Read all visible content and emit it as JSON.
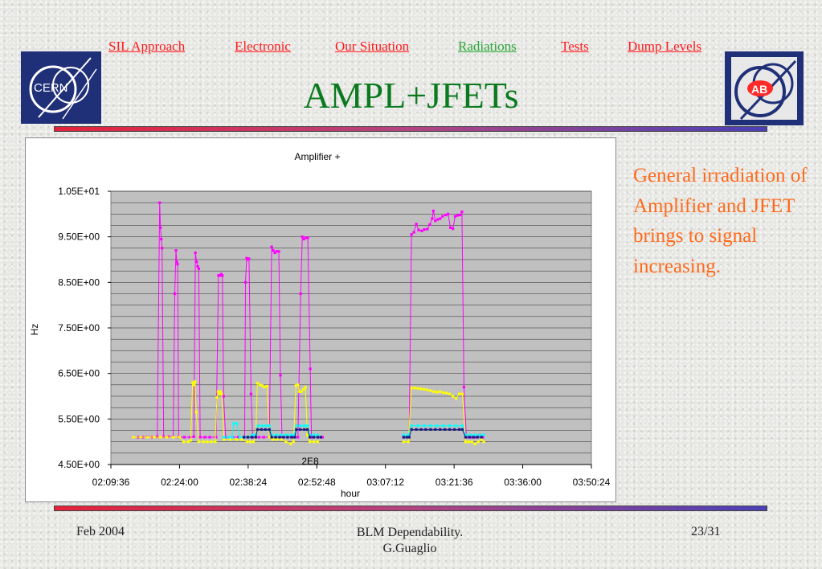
{
  "nav": {
    "items": [
      {
        "label": "SIL Approach",
        "color": "#ff1a1a"
      },
      {
        "label": "Electronic",
        "color": "#ff1a1a"
      },
      {
        "label": "Our Situation",
        "color": "#ff1a1a"
      },
      {
        "label": "Radiations",
        "color": "#2aa637"
      },
      {
        "label": "Tests",
        "color": "#ff1a1a"
      },
      {
        "label": "Dump Levels",
        "color": "#ff1a1a"
      }
    ]
  },
  "logos": {
    "left": {
      "text": "CERN",
      "name": "cern-logo"
    },
    "right": {
      "text": "AB",
      "name": "ab-logo"
    }
  },
  "slide": {
    "title": "AMPL+JFETs",
    "side_text": "General irradiation of Amplifier and JFET brings to signal increasing."
  },
  "footer": {
    "left": "Feb 2004",
    "center_line1": "BLM Dependability.",
    "center_line2": "G.Guaglio",
    "right": "23/31"
  },
  "chart_data": {
    "type": "line",
    "title": "Amplifier +",
    "xlabel": "hour",
    "ylabel": "Hz",
    "annotation": "2E8",
    "x_unit": "time of day (seconds since 00:00)",
    "xlim": [
      7776,
      13824
    ],
    "ylim": [
      45000000,
      105000000
    ],
    "x_ticks": [
      "02:09:36",
      "02:24:00",
      "02:38:24",
      "02:52:48",
      "03:07:12",
      "03:21:36",
      "03:36:00",
      "03:50:24"
    ],
    "y_ticks": [
      "4.50E+00",
      "5.50E+00",
      "6.50E+00",
      "7.50E+00",
      "8.50E+00",
      "9.50E+00",
      "1.05E+01"
    ],
    "grid": true,
    "plot_background": "#c0c0c0",
    "legend": "none",
    "series": [
      {
        "color": "#ff00ff",
        "points": [
          [
            8060,
            51000000
          ],
          [
            8120,
            51000000
          ],
          [
            8180,
            51000000
          ],
          [
            8240,
            51100000
          ],
          [
            8300,
            51000000
          ],
          [
            8360,
            51100000
          ],
          [
            8390,
            102500000
          ],
          [
            8400,
            97000000
          ],
          [
            8410,
            94500000
          ],
          [
            8420,
            92500000
          ],
          [
            8440,
            51100000
          ],
          [
            8500,
            51100000
          ],
          [
            8560,
            51100000
          ],
          [
            8580,
            82500000
          ],
          [
            8595,
            92000000
          ],
          [
            8605,
            89500000
          ],
          [
            8615,
            89000000
          ],
          [
            8630,
            51000000
          ],
          [
            8700,
            51000000
          ],
          [
            8770,
            51000000
          ],
          [
            8820,
            51100000
          ],
          [
            8840,
            91500000
          ],
          [
            8855,
            89500000
          ],
          [
            8868,
            88500000
          ],
          [
            8882,
            88000000
          ],
          [
            8900,
            51000000
          ],
          [
            8960,
            51000000
          ],
          [
            9020,
            51000000
          ],
          [
            9100,
            51000000
          ],
          [
            9130,
            86500000
          ],
          [
            9150,
            86500000
          ],
          [
            9165,
            86800000
          ],
          [
            9180,
            86500000
          ],
          [
            9195,
            60000000
          ],
          [
            9220,
            51000000
          ],
          [
            9300,
            51000000
          ],
          [
            9380,
            51000000
          ],
          [
            9460,
            51000000
          ],
          [
            9470,
            85000000
          ],
          [
            9485,
            90300000
          ],
          [
            9500,
            90000000
          ],
          [
            9515,
            90200000
          ],
          [
            9540,
            60500000
          ],
          [
            9560,
            51000000
          ],
          [
            9640,
            51000000
          ],
          [
            9700,
            51000000
          ],
          [
            9770,
            51000000
          ],
          [
            9800,
            92800000
          ],
          [
            9820,
            92000000
          ],
          [
            9840,
            91500000
          ],
          [
            9860,
            91800000
          ],
          [
            9890,
            91800000
          ],
          [
            9910,
            64600000
          ],
          [
            9930,
            51000000
          ],
          [
            10000,
            51000000
          ],
          [
            10070,
            51000000
          ],
          [
            10130,
            51000000
          ],
          [
            10165,
            82500000
          ],
          [
            10185,
            95000000
          ],
          [
            10205,
            94500000
          ],
          [
            10230,
            94800000
          ],
          [
            10255,
            94800000
          ],
          [
            10285,
            66000000
          ],
          [
            10300,
            51000000
          ],
          [
            10380,
            51000000
          ],
          [
            10440,
            51000000
          ],
          [
            11460,
            51000000
          ],
          [
            11530,
            51000000
          ],
          [
            11560,
            95500000
          ],
          [
            11590,
            96000000
          ],
          [
            11620,
            97800000
          ],
          [
            11650,
            96500000
          ],
          [
            11690,
            96300000
          ],
          [
            11720,
            96600000
          ],
          [
            11760,
            96700000
          ],
          [
            11790,
            97700000
          ],
          [
            11820,
            99000000
          ],
          [
            11835,
            100700000
          ],
          [
            11860,
            98500000
          ],
          [
            11890,
            98800000
          ],
          [
            11920,
            99000000
          ],
          [
            11950,
            99500000
          ],
          [
            11990,
            99800000
          ],
          [
            12020,
            100000000
          ],
          [
            12050,
            97000000
          ],
          [
            12080,
            96800000
          ],
          [
            12110,
            99500000
          ],
          [
            12140,
            99700000
          ],
          [
            12170,
            99800000
          ],
          [
            12195,
            100500000
          ],
          [
            12220,
            62000000
          ],
          [
            12250,
            51000000
          ],
          [
            12290,
            51000000
          ],
          [
            12320,
            51000000
          ],
          [
            12360,
            51000000
          ],
          [
            12420,
            51500000
          ],
          [
            12460,
            51000000
          ]
        ]
      },
      {
        "color": "#ffff00",
        "points": [
          [
            8060,
            51000000
          ],
          [
            8150,
            51000000
          ],
          [
            8240,
            51000000
          ],
          [
            8320,
            51000000
          ],
          [
            8400,
            51000000
          ],
          [
            8480,
            51000000
          ],
          [
            8560,
            51000000
          ],
          [
            8640,
            51000000
          ],
          [
            8690,
            50000000
          ],
          [
            8750,
            50000000
          ],
          [
            8780,
            50300000
          ],
          [
            8805,
            63000000
          ],
          [
            8820,
            62500000
          ],
          [
            8835,
            63200000
          ],
          [
            8850,
            56500000
          ],
          [
            8880,
            50000000
          ],
          [
            8940,
            50000000
          ],
          [
            8990,
            50000000
          ],
          [
            9040,
            50000000
          ],
          [
            9090,
            50000000
          ],
          [
            9110,
            59700000
          ],
          [
            9125,
            61000000
          ],
          [
            9140,
            60500000
          ],
          [
            9155,
            61000000
          ],
          [
            9170,
            60500000
          ],
          [
            9200,
            50500000
          ],
          [
            9280,
            50500000
          ],
          [
            9360,
            50500000
          ],
          [
            9420,
            50500000
          ],
          [
            9490,
            50000000
          ],
          [
            9530,
            50000000
          ],
          [
            9570,
            50000000
          ],
          [
            9600,
            51000000
          ],
          [
            9620,
            62900000
          ],
          [
            9650,
            62500000
          ],
          [
            9680,
            62300000
          ],
          [
            9710,
            62000000
          ],
          [
            9740,
            62200000
          ],
          [
            9770,
            51000000
          ],
          [
            9810,
            50500000
          ],
          [
            9860,
            50500000
          ],
          [
            9920,
            50500000
          ],
          [
            9980,
            50000000
          ],
          [
            10040,
            49500000
          ],
          [
            10075,
            50000000
          ],
          [
            10105,
            62300000
          ],
          [
            10130,
            62500000
          ],
          [
            10150,
            61000000
          ],
          [
            10175,
            61000000
          ],
          [
            10200,
            61500000
          ],
          [
            10225,
            62000000
          ],
          [
            10250,
            51500000
          ],
          [
            10280,
            50000000
          ],
          [
            10330,
            50000000
          ],
          [
            10380,
            50000000
          ],
          [
            11460,
            50000000
          ],
          [
            11520,
            50000000
          ],
          [
            11560,
            61800000
          ],
          [
            11600,
            61800000
          ],
          [
            11640,
            61700000
          ],
          [
            11680,
            61600000
          ],
          [
            11720,
            61500000
          ],
          [
            11760,
            61400000
          ],
          [
            11800,
            61200000
          ],
          [
            11840,
            61000000
          ],
          [
            11880,
            60900000
          ],
          [
            11920,
            61000000
          ],
          [
            11960,
            60800000
          ],
          [
            12000,
            60700000
          ],
          [
            12040,
            60500000
          ],
          [
            12080,
            60000000
          ],
          [
            12120,
            59500000
          ],
          [
            12160,
            60500000
          ],
          [
            12200,
            60500000
          ],
          [
            12240,
            50000000
          ],
          [
            12280,
            50000000
          ],
          [
            12320,
            50000000
          ],
          [
            12360,
            49500000
          ],
          [
            12400,
            50000000
          ],
          [
            12440,
            50500000
          ],
          [
            12470,
            50000000
          ]
        ]
      },
      {
        "color": "#00ffff",
        "points": [
          [
            9200,
            51000000
          ],
          [
            9260,
            51000000
          ],
          [
            9300,
            51000000
          ],
          [
            9320,
            54000000
          ],
          [
            9360,
            54000000
          ],
          [
            9400,
            51000000
          ],
          [
            9460,
            51000000
          ],
          [
            9500,
            51000000
          ],
          [
            9560,
            51500000
          ],
          [
            9600,
            51500000
          ],
          [
            9630,
            53500000
          ],
          [
            9680,
            53500000
          ],
          [
            9730,
            53500000
          ],
          [
            9770,
            53500000
          ],
          [
            9800,
            51500000
          ],
          [
            9860,
            51500000
          ],
          [
            9920,
            51500000
          ],
          [
            9980,
            51500000
          ],
          [
            10040,
            51500000
          ],
          [
            10080,
            51500000
          ],
          [
            10110,
            53500000
          ],
          [
            10160,
            53500000
          ],
          [
            10210,
            53500000
          ],
          [
            10250,
            53500000
          ],
          [
            10280,
            51500000
          ],
          [
            10330,
            51500000
          ],
          [
            10380,
            51500000
          ],
          [
            11460,
            51500000
          ],
          [
            11520,
            51500000
          ],
          [
            11560,
            53500000
          ],
          [
            11640,
            53500000
          ],
          [
            11720,
            53500000
          ],
          [
            11800,
            53500000
          ],
          [
            11880,
            53500000
          ],
          [
            11960,
            53500000
          ],
          [
            12040,
            53500000
          ],
          [
            12120,
            53500000
          ],
          [
            12200,
            53500000
          ],
          [
            12240,
            51500000
          ],
          [
            12300,
            51500000
          ],
          [
            12360,
            51500000
          ],
          [
            12420,
            51500000
          ],
          [
            12470,
            51500000
          ]
        ]
      },
      {
        "color": "#1a1a80",
        "points": [
          [
            9450,
            51000000
          ],
          [
            9500,
            51000000
          ],
          [
            9550,
            51000000
          ],
          [
            9600,
            51000000
          ],
          [
            9620,
            52700000
          ],
          [
            9670,
            52700000
          ],
          [
            9720,
            52700000
          ],
          [
            9770,
            52700000
          ],
          [
            9800,
            51000000
          ],
          [
            9850,
            51000000
          ],
          [
            9900,
            51000000
          ],
          [
            9950,
            51000000
          ],
          [
            10000,
            51000000
          ],
          [
            10050,
            51000000
          ],
          [
            10090,
            51000000
          ],
          [
            10110,
            52700000
          ],
          [
            10160,
            52700000
          ],
          [
            10210,
            52700000
          ],
          [
            10250,
            52700000
          ],
          [
            10280,
            51000000
          ],
          [
            10330,
            51000000
          ],
          [
            10380,
            51000000
          ],
          [
            10420,
            51000000
          ],
          [
            11460,
            51000000
          ],
          [
            11500,
            51000000
          ],
          [
            11530,
            51000000
          ],
          [
            11560,
            52700000
          ],
          [
            11620,
            52700000
          ],
          [
            11680,
            52700000
          ],
          [
            11740,
            52700000
          ],
          [
            11800,
            52700000
          ],
          [
            11860,
            52700000
          ],
          [
            11920,
            52700000
          ],
          [
            11980,
            52700000
          ],
          [
            12040,
            52700000
          ],
          [
            12100,
            52700000
          ],
          [
            12160,
            52700000
          ],
          [
            12200,
            52700000
          ],
          [
            12240,
            51000000
          ],
          [
            12290,
            51000000
          ],
          [
            12340,
            51000000
          ],
          [
            12390,
            51000000
          ],
          [
            12440,
            51000000
          ]
        ]
      }
    ]
  }
}
